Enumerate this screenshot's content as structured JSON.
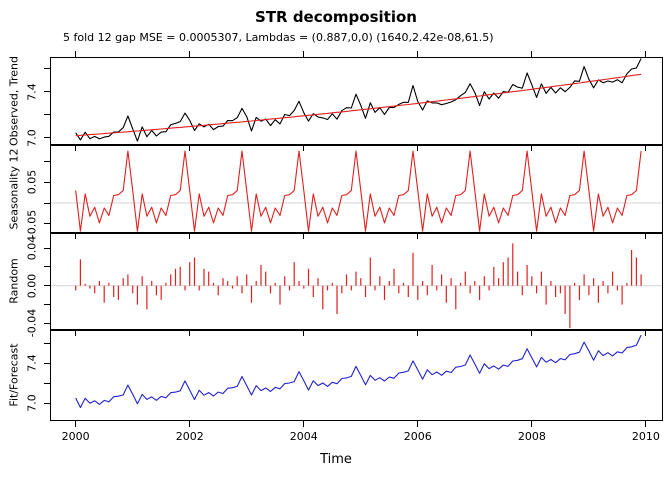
{
  "figure": {
    "title": "STR decomposition",
    "subtitle": "5 fold 12 gap MSE = 0.0005307, Lambdas = (0.887,0,0) (1640,2.42e-08,61.5)",
    "xlabel": "Time",
    "background_color": "#ffffff",
    "border_color": "#000000"
  },
  "chart_data": {
    "type": "line",
    "description": "Four stacked time-series panels: Observed+Trend, Seasonality 12, Random (bars), Fit/Forecast. Monthly data Jan 2000 - Dec 2009.",
    "x_start": 2000,
    "x_frequency": 12,
    "n_points": 120,
    "xlim": [
      1999.55,
      2010.3
    ],
    "x_ticks": [
      2000,
      2002,
      2004,
      2006,
      2008,
      2010
    ],
    "x_tick_labels": [
      "2000",
      "2002",
      "2004",
      "2006",
      "2008",
      "2010"
    ],
    "grid": false,
    "zero_line_color": "#d4d4d4",
    "colors": {
      "observed": "#000000",
      "trend": "#e02020",
      "seasonal": "#e02020",
      "random": "#e02020",
      "fit": "#2222cc"
    },
    "panels": [
      {
        "name": "observed_trend",
        "ylabel": "Observed, Trend",
        "ylim": [
          6.939,
          7.704
        ],
        "yticks": [
          7.0,
          7.2,
          7.4,
          7.6
        ],
        "ytick_labels": [
          "7.0",
          "",
          "7.4",
          ""
        ],
        "zero_line": false,
        "series": [
          {
            "key": "observed",
            "type": "line",
            "color": "#000000"
          },
          {
            "key": "trend",
            "type": "line",
            "color": "#e02020"
          }
        ]
      },
      {
        "name": "seasonality_12",
        "ylabel": "Seasonality 12",
        "ylim": [
          -0.0723,
          0.1398
        ],
        "yticks": [
          -0.05,
          0.0,
          0.05,
          0.1
        ],
        "ytick_labels": [
          "-0.05",
          "",
          "0.05",
          ""
        ],
        "zero_line": true,
        "series": [
          {
            "key": "seasonal",
            "type": "line",
            "color": "#e02020"
          }
        ]
      },
      {
        "name": "random",
        "ylabel": "Random",
        "ylim": [
          -0.047,
          0.056
        ],
        "yticks": [
          -0.04,
          -0.02,
          0.0,
          0.02,
          0.04
        ],
        "ytick_labels": [
          "-0.04",
          "",
          "0.00",
          "",
          "0.04"
        ],
        "zero_line": true,
        "series": [
          {
            "key": "random",
            "type": "bars",
            "color": "#e02020"
          }
        ]
      },
      {
        "name": "fit_forecast",
        "ylabel": "Fit/Forecast",
        "ylim": [
          6.82,
          7.73
        ],
        "yticks": [
          7.0,
          7.2,
          7.4,
          7.6
        ],
        "ytick_labels": [
          "7.0",
          "",
          "7.4",
          ""
        ],
        "zero_line": false,
        "series": [
          {
            "key": "fit",
            "type": "line",
            "color": "#2222cc"
          }
        ]
      }
    ],
    "seasonal_cycle_jan_to_dec": [
      0.03,
      -0.068,
      0.022,
      -0.032,
      -0.01,
      -0.048,
      -0.012,
      -0.03,
      0.018,
      0.02,
      0.03,
      0.125
    ],
    "series_values": {
      "observed": [
        7.045,
        6.983,
        7.05,
        6.994,
        7.014,
        6.992,
        7.008,
        7.015,
        7.051,
        7.053,
        7.089,
        7.191,
        7.08,
        6.973,
        7.096,
        7.011,
        7.066,
        7.017,
        7.051,
        7.055,
        7.115,
        7.127,
        7.142,
        7.216,
        7.154,
        7.065,
        7.123,
        7.096,
        7.119,
        7.073,
        7.099,
        7.103,
        7.152,
        7.15,
        7.176,
        7.257,
        7.186,
        7.062,
        7.179,
        7.146,
        7.165,
        7.108,
        7.159,
        7.122,
        7.204,
        7.195,
        7.239,
        7.319,
        7.22,
        7.147,
        7.211,
        7.182,
        7.175,
        7.161,
        7.21,
        7.163,
        7.237,
        7.263,
        7.261,
        7.381,
        7.283,
        7.17,
        7.306,
        7.222,
        7.263,
        7.205,
        7.265,
        7.265,
        7.292,
        7.31,
        7.309,
        7.456,
        7.316,
        7.243,
        7.322,
        7.305,
        7.305,
        7.289,
        7.3,
        7.313,
        7.333,
        7.368,
        7.395,
        7.472,
        7.395,
        7.282,
        7.402,
        7.339,
        7.391,
        7.346,
        7.404,
        7.397,
        7.465,
        7.442,
        7.433,
        7.565,
        7.463,
        7.353,
        7.471,
        7.388,
        7.44,
        7.391,
        7.436,
        7.402,
        7.44,
        7.496,
        7.493,
        7.621,
        7.51,
        7.436,
        7.505,
        7.48,
        7.495,
        7.486,
        7.507,
        7.48,
        7.557,
        7.6,
        7.608,
        7.691
      ],
      "trend": [
        7.02,
        7.023,
        7.026,
        7.029,
        7.032,
        7.035,
        7.038,
        7.042,
        7.045,
        7.048,
        7.051,
        7.054,
        7.058,
        7.061,
        7.064,
        7.068,
        7.071,
        7.075,
        7.078,
        7.082,
        7.085,
        7.089,
        7.092,
        7.096,
        7.099,
        7.103,
        7.106,
        7.11,
        7.114,
        7.118,
        7.121,
        7.125,
        7.129,
        7.133,
        7.136,
        7.14,
        7.144,
        7.148,
        7.152,
        7.156,
        7.16,
        7.164,
        7.168,
        7.172,
        7.176,
        7.18,
        7.184,
        7.189,
        7.193,
        7.197,
        7.201,
        7.206,
        7.21,
        7.214,
        7.219,
        7.223,
        7.227,
        7.231,
        7.236,
        7.241,
        7.245,
        7.25,
        7.254,
        7.259,
        7.263,
        7.268,
        7.272,
        7.277,
        7.282,
        7.287,
        7.291,
        7.296,
        7.301,
        7.306,
        7.31,
        7.315,
        7.32,
        7.325,
        7.33,
        7.335,
        7.34,
        7.345,
        7.35,
        7.355,
        7.36,
        7.365,
        7.37,
        7.376,
        7.381,
        7.386,
        7.391,
        7.397,
        7.402,
        7.407,
        7.413,
        7.418,
        7.423,
        7.429,
        7.434,
        7.44,
        7.445,
        7.451,
        7.456,
        7.462,
        7.467,
        7.473,
        7.478,
        7.484,
        7.49,
        7.496,
        7.501,
        7.507,
        7.513,
        7.519,
        7.524,
        7.53,
        7.536,
        7.542,
        7.548,
        7.554
      ],
      "random": [
        -0.005,
        0.028,
        0.002,
        -0.003,
        -0.008,
        0.005,
        -0.018,
        0.003,
        -0.012,
        -0.015,
        0.008,
        0.012,
        -0.008,
        -0.02,
        0.01,
        -0.025,
        0.005,
        -0.01,
        -0.015,
        0.003,
        0.012,
        0.018,
        0.02,
        -0.005,
        0.025,
        0.03,
        -0.005,
        0.018,
        0.015,
        0.003,
        -0.01,
        0.008,
        0.005,
        -0.003,
        0.01,
        -0.008,
        0.012,
        -0.018,
        0.005,
        0.022,
        0.015,
        -0.008,
        0.003,
        -0.02,
        0.01,
        -0.005,
        0.025,
        0.005,
        -0.003,
        0.018,
        -0.012,
        0.008,
        -0.025,
        -0.005,
        0.003,
        -0.03,
        -0.008,
        0.012,
        -0.005,
        0.015,
        0.008,
        -0.012,
        0.03,
        -0.005,
        0.01,
        -0.015,
        0.005,
        0.018,
        -0.008,
        0.003,
        -0.012,
        0.035,
        -0.015,
        0.005,
        -0.01,
        0.022,
        -0.005,
        0.012,
        -0.018,
        0.008,
        -0.025,
        0.003,
        0.015,
        -0.008,
        0.005,
        -0.015,
        0.01,
        -0.005,
        0.02,
        0.008,
        0.025,
        0.03,
        0.045,
        0.015,
        -0.01,
        0.022,
        0.01,
        -0.008,
        0.015,
        -0.02,
        0.005,
        -0.012,
        -0.008,
        -0.03,
        -0.045,
        0.003,
        -0.015,
        0.012,
        -0.01,
        0.008,
        -0.018,
        0.005,
        -0.008,
        0.015,
        -0.005,
        -0.02,
        0.003,
        0.038,
        0.03,
        0.012
      ],
      "fit": [
        7.05,
        6.955,
        7.048,
        6.997,
        7.022,
        6.987,
        7.026,
        7.012,
        7.063,
        7.068,
        7.081,
        7.179,
        7.088,
        6.993,
        7.086,
        7.036,
        7.061,
        7.027,
        7.066,
        7.052,
        7.103,
        7.109,
        7.122,
        7.221,
        7.129,
        7.035,
        7.128,
        7.078,
        7.104,
        7.07,
        7.109,
        7.095,
        7.147,
        7.153,
        7.166,
        7.265,
        7.174,
        7.08,
        7.174,
        7.124,
        7.15,
        7.116,
        7.156,
        7.142,
        7.194,
        7.2,
        7.214,
        7.314,
        7.223,
        7.129,
        7.223,
        7.174,
        7.2,
        7.166,
        7.207,
        7.193,
        7.245,
        7.251,
        7.266,
        7.366,
        7.275,
        7.182,
        7.276,
        7.227,
        7.253,
        7.22,
        7.26,
        7.247,
        7.3,
        7.307,
        7.321,
        7.421,
        7.331,
        7.238,
        7.332,
        7.283,
        7.31,
        7.277,
        7.318,
        7.305,
        7.358,
        7.365,
        7.38,
        7.48,
        7.39,
        7.297,
        7.392,
        7.344,
        7.371,
        7.338,
        7.379,
        7.367,
        7.42,
        7.427,
        7.443,
        7.543,
        7.453,
        7.361,
        7.456,
        7.408,
        7.435,
        7.403,
        7.444,
        7.432,
        7.485,
        7.493,
        7.508,
        7.609,
        7.52,
        7.428,
        7.523,
        7.475,
        7.503,
        7.471,
        7.512,
        7.5,
        7.554,
        7.562,
        7.578,
        7.679
      ]
    }
  }
}
